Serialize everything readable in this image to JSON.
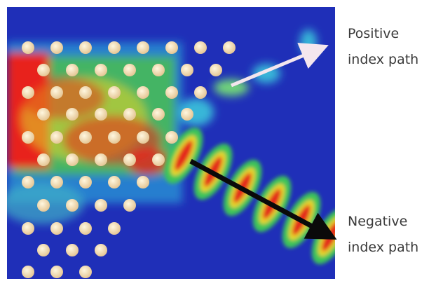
{
  "labels": [
    {
      "lines": [
        "Positive",
        "index path"
      ]
    },
    {
      "lines": [
        "Negative",
        "index path"
      ]
    }
  ]
}
